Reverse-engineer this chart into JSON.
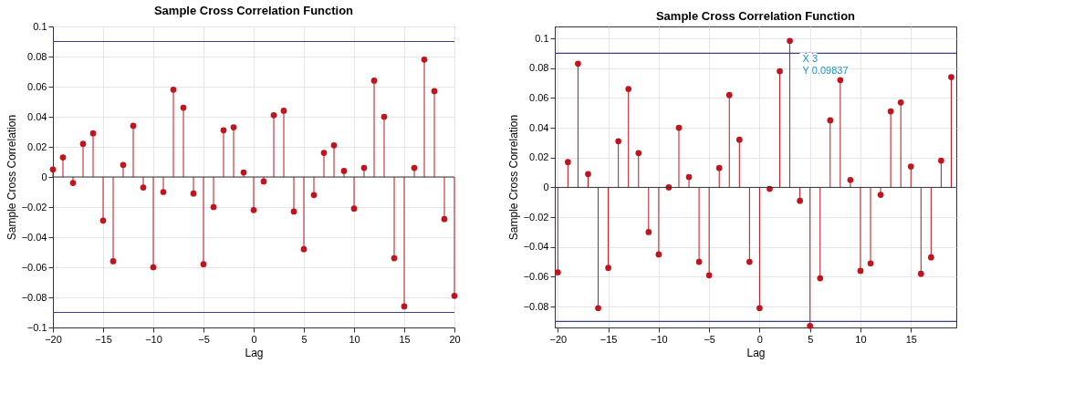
{
  "chart_data": [
    {
      "type": "lollipop",
      "title": "Sample Cross Correlation Function",
      "xlabel": "Lag",
      "ylabel": "Sample Cross Correlation",
      "x": [
        -20,
        -19,
        -18,
        -17,
        -16,
        -15,
        -14,
        -13,
        -12,
        -11,
        -10,
        -9,
        -8,
        -7,
        -6,
        -5,
        -4,
        -3,
        -2,
        -1,
        0,
        1,
        2,
        3,
        4,
        5,
        6,
        7,
        8,
        9,
        10,
        11,
        12,
        13,
        14,
        15,
        16,
        17,
        18,
        19,
        20
      ],
      "series": [
        {
          "color": "#c0141e",
          "values": [
            0.005,
            0.013,
            -0.004,
            0.022,
            0.029,
            -0.029,
            -0.056,
            0.008,
            0.034,
            -0.007,
            -0.06,
            -0.01,
            0.058,
            0.046,
            -0.011,
            -0.058,
            -0.02,
            0.031,
            0.033,
            0.003,
            -0.022,
            -0.003,
            0.041,
            0.044,
            -0.023,
            -0.048,
            -0.012,
            0.016,
            0.021,
            0.004,
            -0.021,
            0.006,
            0.064,
            0.04,
            -0.054,
            -0.086,
            0.006,
            0.078,
            0.057,
            -0.028,
            -0.079
          ]
        }
      ],
      "xlim": [
        -20,
        20
      ],
      "xticks": [
        -20,
        -15,
        -10,
        -5,
        0,
        5,
        10,
        15,
        20
      ],
      "ylim": [
        -0.1,
        0.1
      ],
      "yticks": [
        -0.1,
        -0.08,
        -0.06,
        -0.04,
        -0.02,
        0,
        0.02,
        0.04,
        0.06,
        0.08,
        0.1
      ],
      "ref_lines": [
        {
          "axis": "y",
          "value": 0.09,
          "color": "#3c3f8f"
        },
        {
          "axis": "y",
          "value": -0.09,
          "color": "#3c3f8f"
        }
      ],
      "grid": true,
      "marker": "circle"
    },
    {
      "type": "lollipop",
      "title": "Sample Cross Correlation Function",
      "xlabel": "Lag",
      "ylabel": "Sample Cross Correlation",
      "x": [
        -20,
        -19,
        -18,
        -17,
        -16,
        -15,
        -14,
        -13,
        -12,
        -11,
        -10,
        -9,
        -8,
        -7,
        -6,
        -5,
        -4,
        -3,
        -2,
        -1,
        0,
        1,
        2,
        3,
        4,
        5,
        6,
        7,
        8,
        9,
        10,
        11,
        12,
        13,
        14,
        15,
        16,
        17,
        18,
        19
      ],
      "series": [
        {
          "color": "#c0141e",
          "values": [
            -0.057,
            0.017,
            0.083,
            0.009,
            -0.081,
            -0.054,
            0.031,
            0.066,
            0.023,
            -0.03,
            -0.045,
            0.0,
            0.04,
            0.007,
            -0.05,
            -0.059,
            0.013,
            0.062,
            0.032,
            -0.05,
            -0.081,
            -0.001,
            0.078,
            0.09837,
            -0.009,
            -0.093,
            -0.061,
            0.045,
            0.072,
            0.005,
            -0.056,
            -0.051,
            -0.005,
            0.051,
            0.057,
            0.014,
            -0.058,
            -0.047,
            0.018,
            0.074
          ]
        }
      ],
      "xlim": [
        -20.3,
        19.5
      ],
      "xticks": [
        -20,
        -15,
        -10,
        -5,
        0,
        5,
        10,
        15
      ],
      "ylim": [
        -0.094,
        0.108
      ],
      "yticks": [
        -0.08,
        -0.06,
        -0.04,
        -0.02,
        0,
        0.02,
        0.04,
        0.06,
        0.08,
        0.1
      ],
      "ref_lines": [
        {
          "axis": "y",
          "value": 0.09,
          "color": "#3c3f8f"
        },
        {
          "axis": "y",
          "value": -0.09,
          "color": "#3c3f8f"
        }
      ],
      "annotations": [
        {
          "text": "X 3\nY 0.09837",
          "x": 3,
          "y": 0.09837
        }
      ],
      "grid": true,
      "marker": "circle"
    }
  ]
}
